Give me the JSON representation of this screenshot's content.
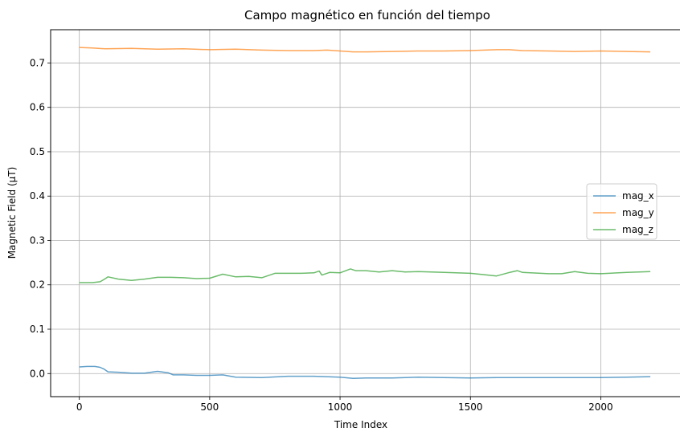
{
  "chart_data": {
    "type": "line",
    "title": "Campo magnético en función del tiempo",
    "xlabel": "Time Index",
    "ylabel": "Magnetic Field (µT)",
    "xlim": [
      -110,
      2310
    ],
    "ylim": [
      -0.052,
      0.775
    ],
    "xticks": [
      0,
      500,
      1000,
      1500,
      2000
    ],
    "yticks": [
      0.0,
      0.1,
      0.2,
      0.3,
      0.4,
      0.5,
      0.6,
      0.7
    ],
    "xtick_labels": [
      "0",
      "500",
      "1000",
      "1500",
      "2000"
    ],
    "ytick_labels": [
      "0.0",
      "0.1",
      "0.2",
      "0.3",
      "0.4",
      "0.5",
      "0.6",
      "0.7"
    ],
    "grid": true,
    "legend_position": "center-right",
    "series": [
      {
        "name": "mag_x",
        "color": "#1f77b4",
        "x": [
          0,
          30,
          60,
          80,
          95,
          110,
          150,
          200,
          250,
          300,
          340,
          360,
          400,
          450,
          500,
          550,
          600,
          700,
          800,
          900,
          1000,
          1050,
          1100,
          1200,
          1300,
          1400,
          1500,
          1600,
          1700,
          1800,
          1900,
          2000,
          2100,
          2190
        ],
        "values": [
          0.015,
          0.016,
          0.016,
          0.014,
          0.01,
          0.004,
          0.003,
          0.001,
          0.001,
          0.005,
          0.002,
          -0.003,
          -0.003,
          -0.004,
          -0.004,
          -0.003,
          -0.008,
          -0.009,
          -0.006,
          -0.006,
          -0.008,
          -0.011,
          -0.01,
          -0.01,
          -0.008,
          -0.009,
          -0.01,
          -0.009,
          -0.009,
          -0.009,
          -0.009,
          -0.009,
          -0.008,
          -0.007
        ]
      },
      {
        "name": "mag_y",
        "color": "#ff7f0e",
        "x": [
          0,
          50,
          100,
          200,
          300,
          400,
          500,
          600,
          700,
          800,
          900,
          950,
          1000,
          1050,
          1100,
          1200,
          1300,
          1400,
          1500,
          1600,
          1650,
          1700,
          1800,
          1900,
          2000,
          2100,
          2190
        ],
        "values": [
          0.735,
          0.734,
          0.732,
          0.733,
          0.731,
          0.732,
          0.73,
          0.731,
          0.729,
          0.728,
          0.728,
          0.729,
          0.727,
          0.725,
          0.725,
          0.726,
          0.727,
          0.727,
          0.728,
          0.73,
          0.73,
          0.728,
          0.727,
          0.726,
          0.727,
          0.726,
          0.725
        ]
      },
      {
        "name": "mag_z",
        "color": "#2ca02c",
        "x": [
          0,
          50,
          80,
          100,
          110,
          150,
          200,
          250,
          300,
          350,
          400,
          450,
          500,
          550,
          600,
          650,
          700,
          750,
          800,
          850,
          900,
          920,
          930,
          960,
          1000,
          1040,
          1060,
          1100,
          1150,
          1200,
          1250,
          1300,
          1400,
          1500,
          1550,
          1600,
          1650,
          1680,
          1700,
          1800,
          1850,
          1900,
          1950,
          2000,
          2100,
          2190
        ],
        "values": [
          0.205,
          0.205,
          0.207,
          0.214,
          0.218,
          0.213,
          0.21,
          0.213,
          0.217,
          0.217,
          0.216,
          0.214,
          0.215,
          0.224,
          0.218,
          0.219,
          0.216,
          0.226,
          0.226,
          0.226,
          0.227,
          0.231,
          0.222,
          0.228,
          0.227,
          0.236,
          0.232,
          0.232,
          0.229,
          0.232,
          0.229,
          0.23,
          0.228,
          0.226,
          0.223,
          0.22,
          0.228,
          0.232,
          0.228,
          0.225,
          0.225,
          0.23,
          0.226,
          0.225,
          0.228,
          0.23
        ]
      }
    ]
  }
}
